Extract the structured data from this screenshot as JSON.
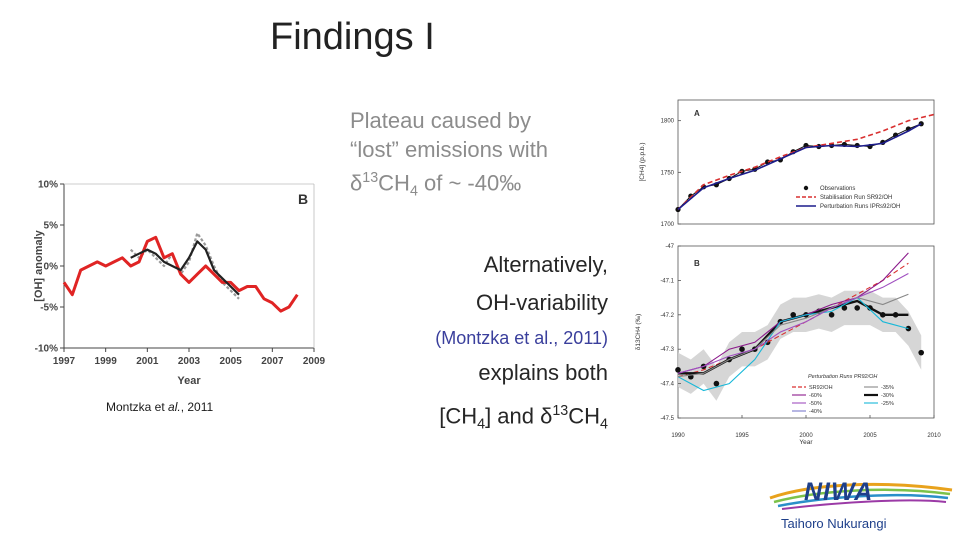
{
  "slide": {
    "title": "Findings I",
    "plateau": {
      "line1": "Plateau caused by",
      "line2": "“lost” emissions with",
      "line3_pre": "δ",
      "line3_sup": "13",
      "line3_mid": "CH",
      "line3_sub": "4",
      "line3_post": " of ~ -40‰"
    },
    "alt": {
      "line1": "Alternatively,",
      "line2": "OH-variability",
      "cite": "(Montzka et al., 2011)",
      "line4": "explains both",
      "line5_a": "[CH",
      "line5_sub1": "4",
      "line5_b": "] and δ",
      "line5_sup": "13",
      "line5_c": "CH",
      "line5_sub2": "4"
    },
    "caption": {
      "pre": "Montzka et ",
      "italic": "al.",
      "post": ", 2011"
    },
    "logo": {
      "name": "NIWA",
      "tagline": "Taihoro Nukurangi"
    }
  },
  "chart_data": [
    {
      "type": "line",
      "panel_letter": "B",
      "xlabel": "Year",
      "ylabel": "[OH] anomaly",
      "xticks": [
        "1997",
        "1999",
        "2001",
        "2003",
        "2005",
        "2007",
        "2009"
      ],
      "yticks": [
        "10%",
        "5%",
        "0%",
        "-5%",
        "-10%"
      ],
      "xlim": [
        1997,
        2009
      ],
      "ylim": [
        -10,
        10
      ],
      "series": [
        {
          "color": "#e02424",
          "x": [
            1997.0,
            1997.4,
            1997.8,
            1998.2,
            1998.6,
            1999.0,
            1999.4,
            1999.8,
            2000.2,
            2000.6,
            2001.0,
            2001.4,
            2001.8,
            2002.2,
            2002.6,
            2003.0,
            2003.4,
            2003.8,
            2004.2,
            2004.6,
            2005.0,
            2005.4,
            2005.8,
            2006.2,
            2006.6,
            2007.0,
            2007.4,
            2007.8,
            2008.2
          ],
          "y": [
            -2,
            -3.5,
            -0.5,
            0,
            0.5,
            0,
            0.5,
            1,
            0,
            0.5,
            3,
            3.5,
            1,
            1.5,
            -1,
            -2,
            -1,
            0,
            -1,
            -2,
            -2,
            -3,
            -2.5,
            -2.5,
            -4,
            -4.5,
            -5.5,
            -5,
            -3.5
          ]
        },
        {
          "color": "#222222",
          "x": [
            2000.2,
            2000.6,
            2001.0,
            2001.4,
            2001.8,
            2002.2,
            2002.6,
            2003.0,
            2003.4,
            2003.8,
            2004.2,
            2004.6,
            2005.0,
            2005.4
          ],
          "y": [
            1,
            1.5,
            2,
            1.5,
            0.5,
            0,
            -0.5,
            1,
            3,
            2,
            -0.5,
            -1.5,
            -2.5,
            -3.5
          ]
        },
        {
          "color": "#9a9a9a",
          "x": [
            2000.2,
            2000.6,
            2001.0,
            2001.4,
            2001.8,
            2002.2,
            2002.6,
            2003.0,
            2003.4,
            2003.8,
            2004.2,
            2004.6,
            2005.0,
            2005.4
          ],
          "y": [
            2,
            1,
            2,
            1,
            0,
            1.5,
            -1,
            0.5,
            4,
            2.5,
            0,
            -2,
            -3,
            -4
          ]
        }
      ]
    },
    {
      "type": "line",
      "panel_letter": "A",
      "ylabel": "[CH4] (p.p.b.)",
      "yticks": [
        "1800",
        "1750",
        "1700"
      ],
      "xlim": [
        1990,
        2010
      ],
      "ylim": [
        1700,
        1820
      ],
      "legend": [
        "Observations",
        "Stabilisation Run SR92/OH",
        "Perturbation Runs IPRs92/OH"
      ],
      "series": [
        {
          "name": "Observations",
          "color": "#111111",
          "marker": "dot",
          "x": [
            1990,
            1991,
            1992,
            1993,
            1994,
            1995,
            1996,
            1997,
            1998,
            1999,
            2000,
            2001,
            2002,
            2003,
            2004,
            2005,
            2006,
            2007,
            2008,
            2009
          ],
          "y": [
            1714,
            1727,
            1736,
            1738,
            1744,
            1751,
            1753,
            1760,
            1762,
            1770,
            1776,
            1775,
            1776,
            1777,
            1776,
            1775,
            1779,
            1786,
            1792,
            1797
          ]
        },
        {
          "name": "Stabilisation Run SR92/OH",
          "color": "#d93030",
          "dashed": true,
          "x": [
            1990,
            1992,
            1994,
            1996,
            1998,
            2000,
            2002,
            2004,
            2006,
            2008,
            2010
          ],
          "y": [
            1714,
            1738,
            1747,
            1755,
            1765,
            1774,
            1778,
            1782,
            1790,
            1800,
            1806
          ]
        },
        {
          "name": "Perturbation Runs IPRs92/OH",
          "color": "#1c1c8c",
          "x": [
            1990,
            1992,
            1994,
            1996,
            1998,
            2000,
            2002,
            2004,
            2006,
            2008,
            2009
          ],
          "y": [
            1714,
            1735,
            1744,
            1752,
            1763,
            1774,
            1776,
            1775,
            1778,
            1790,
            1797
          ]
        }
      ]
    },
    {
      "type": "line",
      "panel_letter": "B",
      "xlabel": "Year",
      "ylabel": "δ13CH4 (‰)",
      "xticks": [
        "1990",
        "1995",
        "2000",
        "2005",
        "2010"
      ],
      "yticks": [
        "-47",
        "-47.1",
        "-47.2",
        "-47.3",
        "-47.4",
        "-47.5"
      ],
      "xlim": [
        1990,
        2010
      ],
      "ylim": [
        -47.5,
        -47
      ],
      "legend_title": "Perturbation Runs PR92/OH",
      "legend": [
        "SR92/OH",
        "-35%",
        "-60%",
        "-30%",
        "-50%",
        "-25%",
        "-40%"
      ],
      "series": [
        {
          "name": "observations",
          "color": "#111111",
          "marker": "dot",
          "x": [
            1990,
            1991,
            1992,
            1993,
            1994,
            1995,
            1996,
            1997,
            1998,
            1999,
            2000,
            2001,
            2002,
            2003,
            2004,
            2005,
            2006,
            2007,
            2008,
            2009
          ],
          "y": [
            -47.36,
            -47.38,
            -47.35,
            -47.4,
            -47.33,
            -47.3,
            -47.3,
            -47.28,
            -47.22,
            -47.2,
            -47.2,
            -47.19,
            -47.2,
            -47.18,
            -47.18,
            -47.18,
            -47.2,
            -47.2,
            -47.24,
            -47.31
          ]
        },
        {
          "name": "SR92/OH",
          "color": "#d93030",
          "dashed": true,
          "x": [
            1990,
            1992,
            1994,
            1996,
            1998,
            2000,
            2002,
            2004,
            2006,
            2008
          ],
          "y": [
            -47.38,
            -47.36,
            -47.33,
            -47.3,
            -47.26,
            -47.22,
            -47.18,
            -47.14,
            -47.1,
            -47.05
          ]
        },
        {
          "name": "-30%",
          "color": "#111111",
          "bold": true,
          "x": [
            1990,
            1992,
            1994,
            1996,
            1998,
            2000,
            2002,
            2004,
            2006,
            2008
          ],
          "y": [
            -47.37,
            -47.37,
            -47.33,
            -47.3,
            -47.22,
            -47.2,
            -47.18,
            -47.16,
            -47.2,
            -47.2
          ]
        },
        {
          "name": "-60%",
          "color": "#8b1a8b",
          "x": [
            1990,
            1992,
            1994,
            1996,
            1998,
            2000,
            2002,
            2004,
            2006,
            2008
          ],
          "y": [
            -47.37,
            -47.35,
            -47.3,
            -47.28,
            -47.22,
            -47.2,
            -47.17,
            -47.15,
            -47.1,
            -47.02
          ]
        },
        {
          "name": "-25%",
          "color": "#18b8d8",
          "x": [
            1990,
            1992,
            1994,
            1996,
            1998,
            2000,
            2002,
            2004,
            2006,
            2008
          ],
          "y": [
            -47.38,
            -47.42,
            -47.4,
            -47.33,
            -47.22,
            -47.2,
            -47.19,
            -47.15,
            -47.22,
            -47.24
          ]
        },
        {
          "name": "-35%",
          "color": "#888888",
          "x": [
            1990,
            1992,
            1994,
            1996,
            1998,
            2000,
            2002,
            2004,
            2006,
            2008
          ],
          "y": [
            -47.38,
            -47.37,
            -47.33,
            -47.3,
            -47.23,
            -47.21,
            -47.18,
            -47.15,
            -47.17,
            -47.14
          ]
        },
        {
          "name": "-50%",
          "color": "#a050c0",
          "x": [
            1990,
            1992,
            1994,
            1996,
            1998,
            2000,
            2002,
            2004,
            2006,
            2008
          ],
          "y": [
            -47.37,
            -47.35,
            -47.32,
            -47.3,
            -47.25,
            -47.22,
            -47.18,
            -47.15,
            -47.12,
            -47.08
          ]
        }
      ]
    }
  ]
}
